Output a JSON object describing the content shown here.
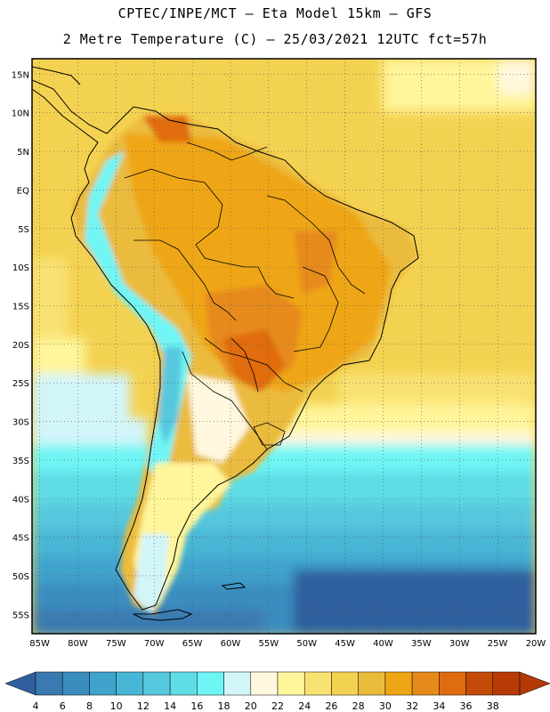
{
  "header": {
    "line1": "CPTEC/INPE/MCT –  Eta Model 15km – GFS",
    "line2": "2 Metre Temperature (C) – 25/03/2021 12UTC fct=57h"
  },
  "map": {
    "lat_labels": [
      "15N",
      "10N",
      "5N",
      "EQ",
      "5S",
      "10S",
      "15S",
      "20S",
      "25S",
      "30S",
      "35S",
      "40S",
      "45S",
      "50S",
      "55S"
    ],
    "lon_labels": [
      "85W",
      "80W",
      "75W",
      "70W",
      "65W",
      "60W",
      "55W",
      "50W",
      "45W",
      "40W",
      "35W",
      "30W",
      "25W",
      "20W"
    ],
    "lat_values": [
      15,
      10,
      5,
      0,
      -5,
      -10,
      -15,
      -20,
      -25,
      -30,
      -35,
      -40,
      -45,
      -50,
      -55
    ],
    "lon_values": [
      -85,
      -80,
      -75,
      -70,
      -65,
      -60,
      -55,
      -50,
      -45,
      -40,
      -35,
      -30,
      -25,
      -20
    ],
    "extent": {
      "lon_min": -86,
      "lon_max": -20,
      "lat_min": -57.5,
      "lat_max": 17
    }
  },
  "colorbar": {
    "values": [
      "4",
      "6",
      "8",
      "10",
      "12",
      "14",
      "16",
      "18",
      "20",
      "22",
      "24",
      "26",
      "28",
      "30",
      "32",
      "34",
      "36",
      "38"
    ],
    "colors": [
      "#3a7ab0",
      "#3b8dc0",
      "#3fa3cc",
      "#48b6d6",
      "#56c8de",
      "#5edde6",
      "#6ff5f5",
      "#d2f5fa",
      "#fff8de",
      "#fff59a",
      "#f9e272",
      "#f4d251",
      "#ebbb3c",
      "#efa614",
      "#e68a1c",
      "#e06c10",
      "#c44a08",
      "#b83a04"
    ],
    "under_color": "#2f5f9e",
    "over_color": "#b23a06"
  }
}
